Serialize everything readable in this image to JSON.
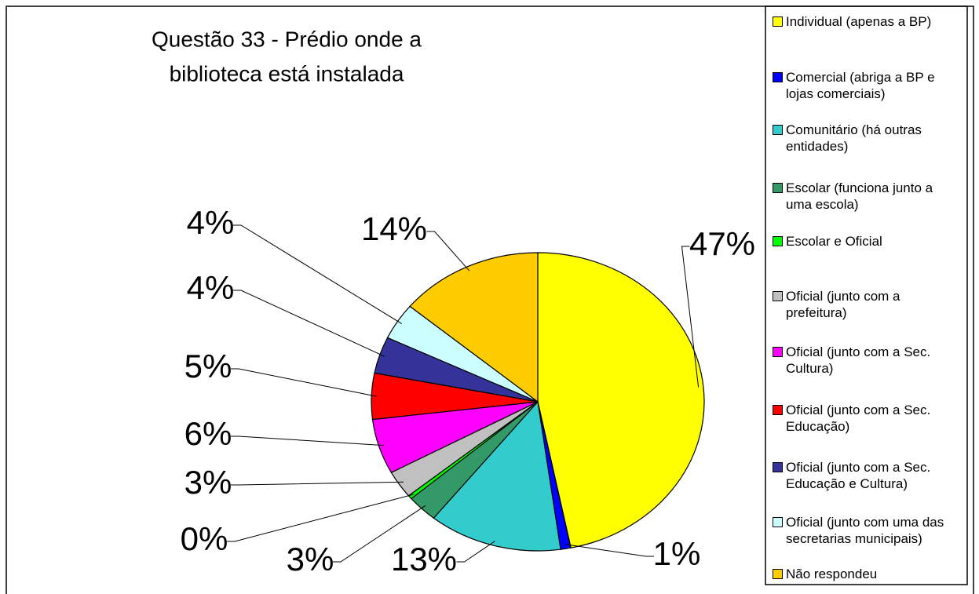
{
  "chart_data": {
    "type": "pie",
    "title": [
      "Questão 33 - Prédio onde a",
      "biblioteca está instalada"
    ],
    "categories": [
      "Individual (apenas a BP)",
      "Comercial (abriga a BP e lojas comerciais)",
      "Comunitário (há outras entidades)",
      "Escolar (funciona junto a uma escola)",
      "Escolar e Oficial",
      "Oficial (junto com a prefeitura)",
      "Oficial (junto com a Sec. Cultura)",
      "Oficial (junto com a Sec. Educação)",
      "Oficial (junto com a Sec. Educação e Cultura)",
      "Oficial (junto com uma das secretarias municipais)",
      "Não respondeu"
    ],
    "values": [
      47,
      1,
      13,
      3,
      0.4,
      3,
      6,
      5,
      4,
      4,
      14
    ],
    "value_labels": [
      "47%",
      "1%",
      "13%",
      "3%",
      "0%",
      "3%",
      "6%",
      "5%",
      "4%",
      "4%",
      "14%"
    ],
    "colors": [
      "#ffff00",
      "#0000ff",
      "#33cccc",
      "#339966",
      "#00ff00",
      "#c0c0c0",
      "#ff00ff",
      "#ff0000",
      "#333399",
      "#ccffff",
      "#ffcc00"
    ],
    "legend": "right"
  }
}
